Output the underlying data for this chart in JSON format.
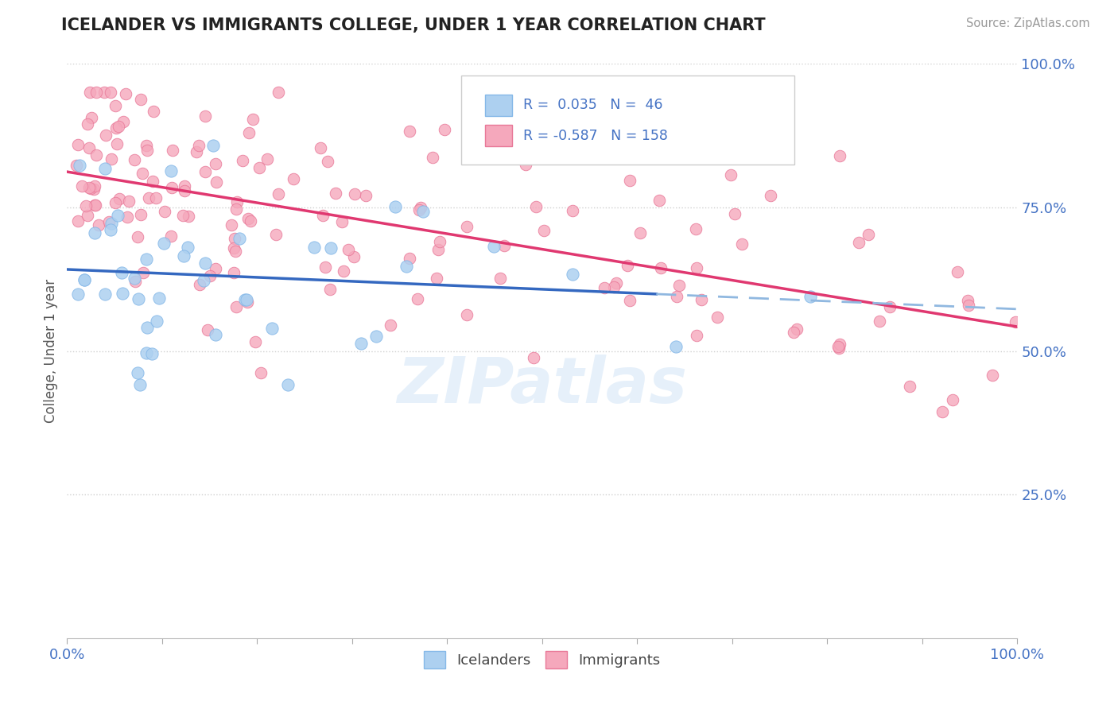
{
  "title": "ICELANDER VS IMMIGRANTS COLLEGE, UNDER 1 YEAR CORRELATION CHART",
  "source_text": "Source: ZipAtlas.com",
  "ylabel": "College, Under 1 year",
  "xlim": [
    0.0,
    1.0
  ],
  "ylim": [
    0.0,
    1.0
  ],
  "x_ticks": [
    0.0,
    0.1,
    0.2,
    0.3,
    0.4,
    0.5,
    0.6,
    0.7,
    0.8,
    0.9,
    1.0
  ],
  "x_tick_labels": [
    "0.0%",
    "",
    "",
    "",
    "",
    "",
    "",
    "",
    "",
    "",
    "100.0%"
  ],
  "y_ticks": [
    0.25,
    0.5,
    0.75,
    1.0
  ],
  "y_tick_labels": [
    "25.0%",
    "50.0%",
    "75.0%",
    "100.0%"
  ],
  "icelanders_color": "#add0f0",
  "immigrants_color": "#f5a8bc",
  "icelanders_edge": "#85b8e8",
  "immigrants_edge": "#e87898",
  "trend_blue_solid": "#3468c0",
  "trend_blue_dashed": "#90b8e0",
  "trend_pink": "#e03870",
  "R_icelanders": 0.035,
  "N_icelanders": 46,
  "R_immigrants": -0.587,
  "N_immigrants": 158,
  "background_color": "#ffffff",
  "grid_color": "#d0d0d0",
  "watermark": "ZIPatlas",
  "legend_label_1": "Icelanders",
  "legend_label_2": "Immigrants",
  "title_color": "#222222",
  "axis_label_color": "#4472c4",
  "tick_color": "#4472c4"
}
